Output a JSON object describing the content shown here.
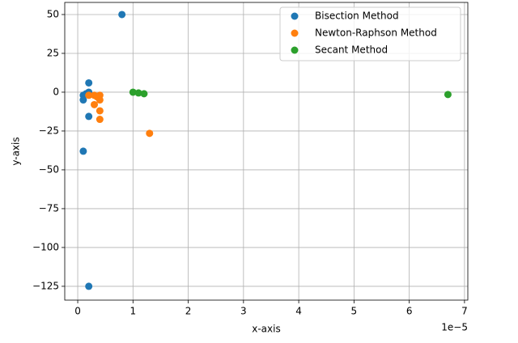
{
  "chart_data": {
    "type": "scatter",
    "x_label": "x-axis",
    "y_label": "y-axis",
    "x_offset_label": "1e−5",
    "xlim": [
      -0.235,
      7.06
    ],
    "ylim": [
      -133.9,
      57.8
    ],
    "xticks": [
      0,
      1,
      2,
      3,
      4,
      5,
      6,
      7
    ],
    "yticks": [
      {
        "value": -125,
        "label": "−125"
      },
      {
        "value": -100,
        "label": "−100"
      },
      {
        "value": -75,
        "label": "−75"
      },
      {
        "value": -50,
        "label": "−50"
      },
      {
        "value": -25,
        "label": "−25"
      },
      0,
      25,
      50
    ],
    "grid": true,
    "legend_position": "upper-right",
    "series": [
      {
        "name": "Bisection Method",
        "color": "#1f77b4",
        "x": [
          0.8,
          0.2,
          0.2,
          0.1,
          0.1,
          0.2,
          0.1,
          0.2,
          0.15
        ],
        "values": [
          50,
          6,
          0,
          -2,
          -5,
          -15.6,
          -38,
          -125,
          -1
        ]
      },
      {
        "name": "Newton-Raphson Method",
        "color": "#ff7f0e",
        "x": [
          0.2,
          0.3,
          0.3,
          0.4,
          0.4,
          0.4,
          0.4,
          1.3,
          0.35
        ],
        "values": [
          -2,
          -2,
          -8,
          -2,
          -5,
          -12,
          -17.5,
          -26.5,
          -3
        ]
      },
      {
        "name": "Secant Method",
        "color": "#2ca02c",
        "x": [
          1.0,
          1.1,
          1.2,
          6.7
        ],
        "values": [
          0,
          -0.5,
          -1,
          -1.5
        ]
      }
    ]
  }
}
